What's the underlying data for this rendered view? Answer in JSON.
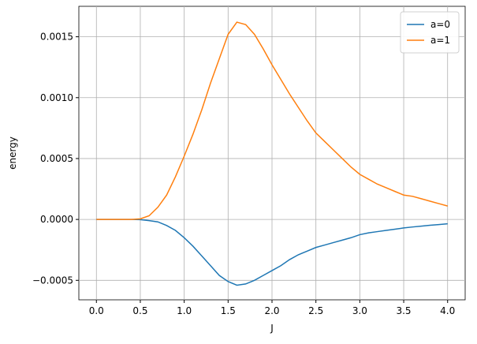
{
  "chart_data": {
    "type": "line",
    "xlabel": "J",
    "ylabel": "energy",
    "x": [
      0,
      0.1,
      0.2,
      0.3,
      0.4,
      0.5,
      0.6,
      0.7,
      0.8,
      0.9,
      1,
      1.1,
      1.2,
      1.3,
      1.4,
      1.5,
      1.6,
      1.7,
      1.8,
      1.9,
      2,
      2.1,
      2.2,
      2.3,
      2.4,
      2.5,
      2.6,
      2.7,
      2.8,
      2.9,
      3,
      3.1,
      3.2,
      3.3,
      3.4,
      3.5,
      3.6,
      3.7,
      3.8,
      3.9,
      4
    ],
    "series": [
      {
        "name": "a=0",
        "color": "#1f77b4",
        "values": [
          0,
          0,
          0,
          0,
          0,
          -2e-06,
          -1e-05,
          -2e-05,
          -5e-05,
          -9e-05,
          -0.00015,
          -0.00022,
          -0.0003,
          -0.00038,
          -0.00046,
          -0.00051,
          -0.00054,
          -0.00053,
          -0.0005,
          -0.00046,
          -0.00042,
          -0.00038,
          -0.00033,
          -0.00029,
          -0.00026,
          -0.00023,
          -0.00021,
          -0.00019,
          -0.00017,
          -0.00015,
          -0.000125,
          -0.00011,
          -0.0001,
          -9e-05,
          -8e-05,
          -7e-05,
          -6.2e-05,
          -5.5e-05,
          -4.8e-05,
          -4.2e-05,
          -3.6e-05
        ]
      },
      {
        "name": "a=1",
        "color": "#ff7f0e",
        "values": [
          0,
          0,
          0,
          0,
          0,
          5e-06,
          3e-05,
          0.0001,
          0.0002,
          0.00035,
          0.00052,
          0.0007,
          0.0009,
          0.00112,
          0.00132,
          0.00152,
          0.00162,
          0.0016,
          0.00152,
          0.0014,
          0.00127,
          0.00115,
          0.00103,
          0.00092,
          0.00081,
          0.00071,
          0.00064,
          0.00057,
          0.0005,
          0.00043,
          0.00037,
          0.00033,
          0.00029,
          0.00026,
          0.00023,
          0.0002,
          0.00019,
          0.00017,
          0.00015,
          0.00013,
          0.00011
        ]
      }
    ],
    "xlim": [
      -0.2,
      4.2
    ],
    "ylim": [
      -0.00066,
      0.00175
    ],
    "xticks": [
      {
        "value": 0,
        "label": "0.0"
      },
      {
        "value": 0.5,
        "label": "0.5"
      },
      {
        "value": 1,
        "label": "1.0"
      },
      {
        "value": 1.5,
        "label": "1.5"
      },
      {
        "value": 2,
        "label": "2.0"
      },
      {
        "value": 2.5,
        "label": "2.5"
      },
      {
        "value": 3,
        "label": "3.0"
      },
      {
        "value": 3.5,
        "label": "3.5"
      },
      {
        "value": 4,
        "label": "4.0"
      }
    ],
    "yticks": [
      {
        "value": -0.0005,
        "label": "−0.0005"
      },
      {
        "value": 0,
        "label": "0.0000"
      },
      {
        "value": 0.0005,
        "label": "0.0005"
      },
      {
        "value": 0.001,
        "label": "0.0010"
      },
      {
        "value": 0.0015,
        "label": "0.0015"
      }
    ],
    "grid": true,
    "legend": "upper right"
  }
}
